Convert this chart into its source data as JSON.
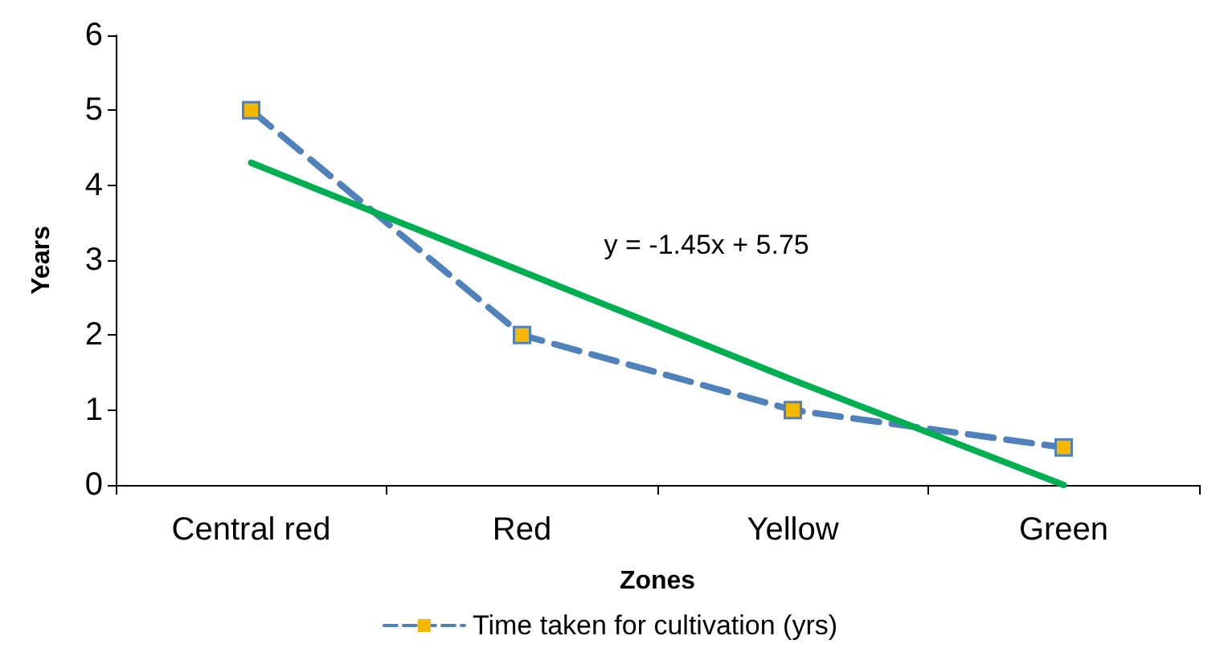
{
  "chart_data": {
    "type": "line",
    "xlabel": "Zones",
    "ylabel": "Years",
    "categories": [
      "Central red",
      "Red",
      "Yellow",
      "Green"
    ],
    "series": [
      {
        "name": "Time taken for cultivation (yrs)",
        "color": "#4f81bd",
        "colors": [
          "#f5b800",
          "#f5b800",
          "#f5b800",
          "#f5b800"
        ],
        "values": [
          5,
          2,
          1,
          0.5
        ],
        "line_style": "dashed",
        "marker": "square"
      },
      {
        "type": "line",
        "values": [
          4.3,
          2.85,
          1.4,
          0
        ],
        "color": "#00b050",
        "line_style": "solid",
        "marker": "none"
      }
    ],
    "annotations": [
      "y = -1.45x + 5.75"
    ],
    "ylim": [
      0,
      6
    ],
    "yticks": [
      0,
      1,
      2,
      3,
      4,
      5,
      6
    ],
    "grid": false,
    "legend": "bottom"
  }
}
